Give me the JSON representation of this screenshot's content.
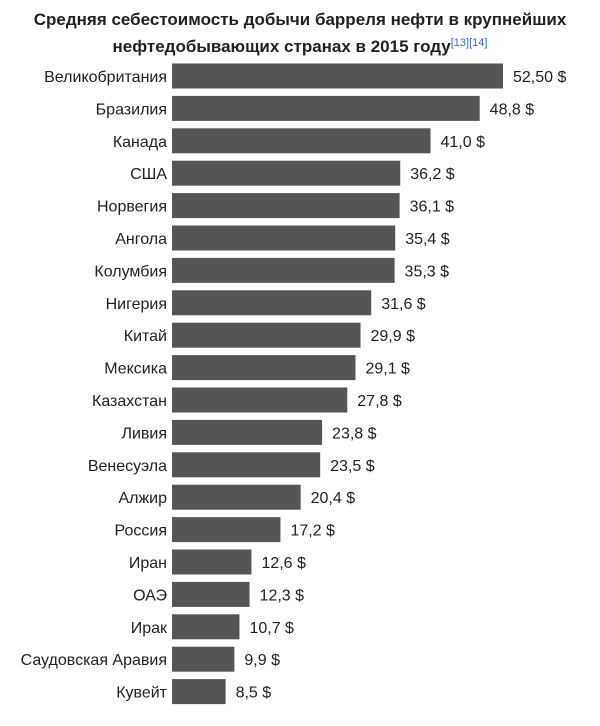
{
  "chart_data": {
    "type": "bar",
    "orientation": "horizontal",
    "title_line1": "Средняя себестоимость добычи барреля нефти в крупнейших",
    "title_line2": "нефтедобывающих странах в 2015 году",
    "refs": [
      "[13]",
      "[14]"
    ],
    "bar_color": "#555555",
    "categories": [
      "Великобритания",
      "Бразилия",
      "Канада",
      "США",
      "Норвегия",
      "Ангола",
      "Колумбия",
      "Нигерия",
      "Китай",
      "Мексика",
      "Казахстан",
      "Ливия",
      "Венесуэла",
      "Алжир",
      "Россия",
      "Иран",
      "ОАЭ",
      "Ирак",
      "Саудовская Аравия",
      "Кувейт"
    ],
    "values": [
      52.5,
      48.8,
      41.0,
      36.2,
      36.1,
      35.4,
      35.3,
      31.6,
      29.9,
      29.1,
      27.8,
      23.8,
      23.5,
      20.4,
      17.2,
      12.6,
      12.3,
      10.7,
      9.9,
      8.5
    ],
    "value_labels": [
      "52,50 $",
      "48,8 $",
      "41,0 $",
      "36,2 $",
      "36,1 $",
      "35,4 $",
      "35,3 $",
      "31,6 $",
      "29,9 $",
      "29,1 $",
      "27,8 $",
      "23,8 $",
      "23,5 $",
      "20,4 $",
      "17,2 $",
      "12,6 $",
      "12,3 $",
      "10,7 $",
      "9,9 $",
      "8,5 $"
    ],
    "xlim": [
      0,
      52.5
    ]
  }
}
